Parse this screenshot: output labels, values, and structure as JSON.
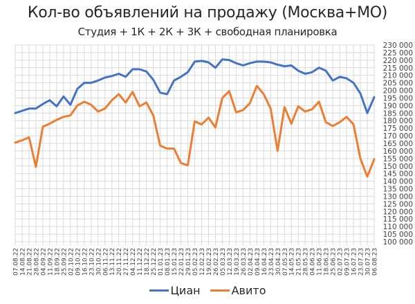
{
  "chart_data": {
    "type": "line",
    "title": "Кол-во объявлений на продажу (Москва+МО)",
    "subtitle": "Студия + 1К + 2К + 3К + свободная планировка",
    "xlabel": "",
    "ylabel": "",
    "ylim": [
      100000,
      230000
    ],
    "ytick_step": 5000,
    "y_axis_position": "right",
    "grid": true,
    "legend_position": "bottom",
    "x": [
      "07.08.22",
      "14.08.22",
      "21.08.22",
      "28.08.22",
      "04.09.22",
      "11.09.22",
      "18.09.22",
      "25.09.22",
      "02.10.22",
      "09.10.22",
      "16.10.22",
      "23.10.22",
      "30.10.22",
      "06.11.22",
      "13.11.22",
      "20.11.22",
      "27.11.22",
      "04.12.22",
      "11.12.22",
      "18.12.22",
      "25.12.22",
      "01.01.23",
      "08.01.23",
      "15.01.23",
      "22.01.23",
      "29.01.23",
      "05.02.23",
      "12.02.23",
      "19.02.23",
      "26.02.23",
      "05.03.23",
      "12.03.23",
      "19.03.23",
      "26.03.23",
      "02.04.23",
      "09.04.23",
      "16.04.23",
      "23.04.23",
      "30.04.23",
      "07.05.23",
      "14.05.23",
      "21.05.23",
      "28.05.23",
      "04.06.23",
      "11.06.23",
      "18.06.23",
      "25.06.23",
      "02.07.23",
      "09.07.23",
      "16.07.23",
      "23.07.23",
      "30.07.23",
      "06.08.23"
    ],
    "yticks": [
      "100 000",
      "105 000",
      "110 000",
      "115 000",
      "120 000",
      "125 000",
      "130 000",
      "135 000",
      "140 000",
      "145 000",
      "150 000",
      "155 000",
      "160 000",
      "165 000",
      "170 000",
      "175 000",
      "180 000",
      "185 000",
      "190 000",
      "195 000",
      "200 000",
      "205 000",
      "210 000",
      "215 000",
      "220 000",
      "225 000",
      "230 000"
    ],
    "series": [
      {
        "name": "Циан",
        "color": "#4472C4",
        "values": [
          185000,
          186500,
          188000,
          188000,
          191000,
          193500,
          189500,
          196000,
          190500,
          201000,
          205000,
          205000,
          206500,
          208500,
          209500,
          211000,
          209000,
          214000,
          214000,
          212500,
          207000,
          198500,
          197500,
          206500,
          209000,
          212000,
          219000,
          219500,
          218500,
          215000,
          220500,
          220000,
          218000,
          216500,
          218000,
          219000,
          219000,
          218500,
          217000,
          216000,
          216500,
          213000,
          211000,
          212000,
          215000,
          213000,
          206500,
          209000,
          208000,
          205000,
          198000,
          185000,
          195500
        ]
      },
      {
        "name": "Авито",
        "color": "#ED7D31",
        "values": [
          165500,
          167000,
          169000,
          149500,
          176000,
          178000,
          180500,
          182500,
          183500,
          190000,
          192500,
          190500,
          186000,
          188000,
          193500,
          197500,
          192000,
          199000,
          189500,
          192000,
          183500,
          163500,
          161500,
          161500,
          152000,
          150500,
          179500,
          177500,
          182000,
          175500,
          195000,
          199500,
          185500,
          187000,
          191500,
          203000,
          197500,
          188000,
          160000,
          189000,
          178000,
          189500,
          186000,
          187500,
          192500,
          179000,
          176500,
          179000,
          182500,
          177500,
          155000,
          143000,
          154500
        ]
      }
    ]
  },
  "legend": {
    "items": [
      {
        "label": "Циан",
        "color": "#4472C4"
      },
      {
        "label": "Авито",
        "color": "#ED7D31"
      }
    ]
  }
}
